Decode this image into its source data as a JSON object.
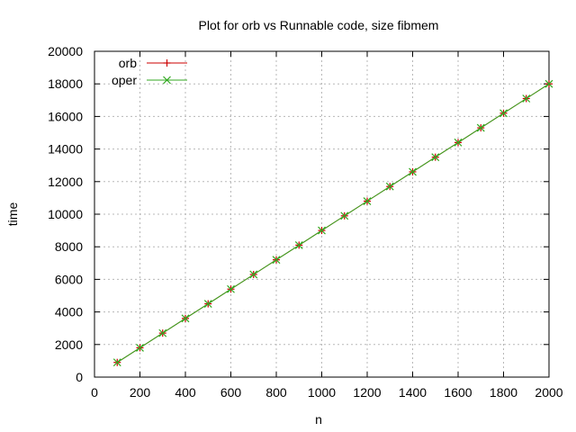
{
  "chart_data": {
    "type": "line",
    "title": "Plot for orb vs Runnable code, size fibmem",
    "xlabel": "n",
    "ylabel": "time",
    "xlim": [
      0,
      2000
    ],
    "ylim": [
      0,
      20000
    ],
    "x_ticks": [
      0,
      200,
      400,
      600,
      800,
      1000,
      1200,
      1400,
      1600,
      1800,
      2000
    ],
    "y_ticks": [
      0,
      2000,
      4000,
      6000,
      8000,
      10000,
      12000,
      14000,
      16000,
      18000,
      20000
    ],
    "grid": true,
    "legend_position": "top-left",
    "x": [
      100,
      200,
      300,
      400,
      500,
      600,
      700,
      800,
      900,
      1000,
      1100,
      1200,
      1300,
      1400,
      1500,
      1600,
      1700,
      1800,
      1900,
      2000
    ],
    "series": [
      {
        "name": "orb",
        "color": "#cc0000",
        "marker": "plus",
        "values": [
          900,
          1800,
          2700,
          3600,
          4500,
          5400,
          6300,
          7200,
          8100,
          9000,
          9900,
          10800,
          11700,
          12600,
          13500,
          14400,
          15300,
          16200,
          17100,
          18000
        ]
      },
      {
        "name": "oper",
        "color": "#33aa22",
        "marker": "x",
        "values": [
          900,
          1800,
          2700,
          3600,
          4500,
          5400,
          6300,
          7200,
          8100,
          9000,
          9900,
          10800,
          11700,
          12600,
          13500,
          14400,
          15300,
          16200,
          17100,
          18000
        ]
      }
    ]
  }
}
